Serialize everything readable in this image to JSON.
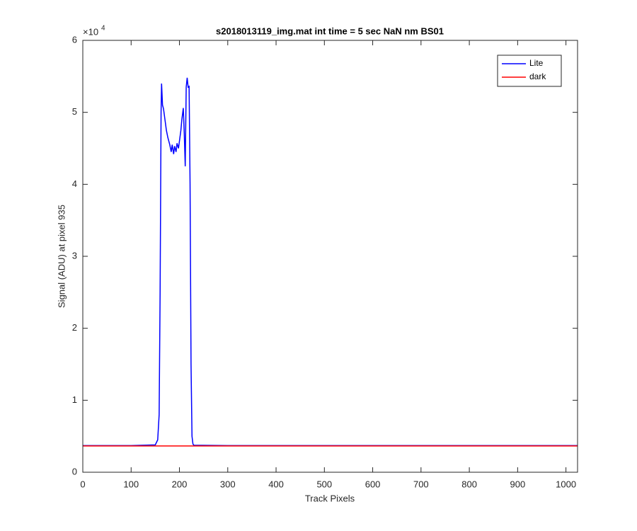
{
  "chart_data": {
    "type": "line",
    "title": "s2018013119_img.mat int time = 5 sec  NaN nm BS01",
    "x_label": "Track Pixels",
    "y_label": "Signal (ADU) at pixel 935",
    "y_multiplier": [
      "×10",
      "4"
    ],
    "xlim": [
      0,
      1024
    ],
    "ylim": [
      0,
      60000
    ],
    "xticks": [
      0,
      100,
      200,
      300,
      400,
      500,
      600,
      700,
      800,
      900,
      1000
    ],
    "yticks": [
      {
        "value": 0,
        "label": "0"
      },
      {
        "value": 10000,
        "label": "1"
      },
      {
        "value": 20000,
        "label": "2"
      },
      {
        "value": 30000,
        "label": "3"
      },
      {
        "value": 40000,
        "label": "4"
      },
      {
        "value": 50000,
        "label": "5"
      },
      {
        "value": 60000,
        "label": "6"
      }
    ],
    "legend_position": "upper-right",
    "series": [
      {
        "name": "Lite",
        "color": "#0000ff",
        "x": [
          0,
          100,
          150,
          155,
          158,
          160,
          162,
          163,
          165,
          167,
          170,
          173,
          176,
          180,
          183,
          185,
          188,
          190,
          193,
          195,
          198,
          200,
          203,
          205,
          208,
          210,
          212,
          214,
          216,
          218,
          220,
          222,
          224,
          226,
          228,
          230,
          300,
          500,
          700,
          900,
          1024
        ],
        "values": [
          3700,
          3700,
          3800,
          4500,
          8000,
          25000,
          50000,
          54000,
          51000,
          50500,
          49000,
          47500,
          46500,
          45500,
          44500,
          45500,
          44200,
          45300,
          44500,
          45700,
          45000,
          46000,
          47500,
          49000,
          50600,
          47000,
          42500,
          53500,
          54800,
          53500,
          53600,
          40000,
          15000,
          5000,
          3900,
          3750,
          3700,
          3700,
          3700,
          3700,
          3700
        ]
      },
      {
        "name": "dark",
        "color": "#ff0000",
        "x": [
          0,
          1024
        ],
        "values": [
          3650,
          3650
        ]
      }
    ]
  }
}
